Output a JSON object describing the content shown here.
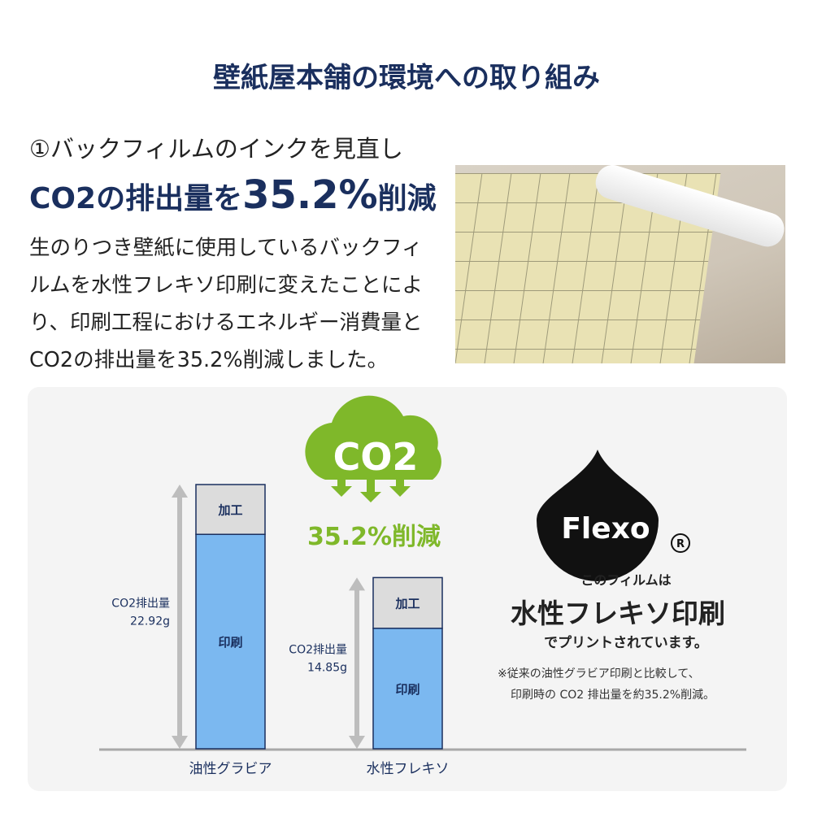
{
  "title": "壁紙屋本舗の環境への取り組み",
  "subtitle": "①バックフィルムのインクを見直し",
  "headline": {
    "pre": "CO2の排出量を",
    "value": "35.2%",
    "post": "削減"
  },
  "body": "生のりつき壁紙に使用しているバックフィルムを水性フレキソ印刷に変えたことにより、印刷工程におけるエネルギー消費量とCO2の排出量を35.2%削減しました。",
  "cloud": {
    "label": "CO2",
    "reduction": "35.2%削減",
    "color": "#7fb82a"
  },
  "flexo": {
    "logo": "Flexo",
    "registered": "®",
    "line1": "このフィルムは",
    "line2": "水性フレキソ印刷",
    "line3": "でプリントされています。",
    "note1": "※従来の油性グラビア印刷と比較して、",
    "note2": "印刷時の CO2 排出量を約35.2%削減。"
  },
  "chart_data": {
    "type": "bar",
    "stacked": true,
    "categories": [
      "油性グラビア",
      "水性フレキソ"
    ],
    "series": [
      {
        "name": "印刷",
        "values": [
          18.6,
          10.45
        ],
        "color": "#7bb8f0"
      },
      {
        "name": "加工",
        "values": [
          4.32,
          4.4
        ],
        "color": "#dcdcdc"
      }
    ],
    "totals": [
      22.92,
      14.85
    ],
    "total_labels": [
      [
        "CO2排出量",
        "22.92g"
      ],
      [
        "CO2排出量",
        "14.85g"
      ]
    ],
    "ylim": [
      0,
      22.92
    ]
  }
}
